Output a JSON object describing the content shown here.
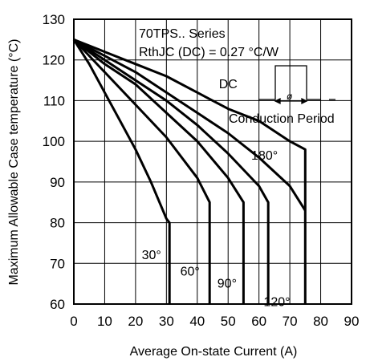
{
  "chart_data": {
    "type": "line",
    "title": "",
    "xlabel": "Average On-state Current (A)",
    "ylabel": "Maximum Allowable Case temperature (°C)",
    "xlim": [
      0,
      90
    ],
    "ylim": [
      60,
      130
    ],
    "xticks": [
      0,
      10,
      20,
      30,
      40,
      50,
      60,
      70,
      80,
      90
    ],
    "yticks": [
      60,
      70,
      80,
      90,
      100,
      110,
      120,
      130
    ],
    "grid": true,
    "annotations": {
      "series_line1": "70TPS.. Series",
      "series_line2": "RthJC (DC) = 0.27 °C/W",
      "conduction_label": "Conduction Period",
      "phi_symbol": "ø"
    },
    "series": [
      {
        "name": "30°",
        "label_at": [
          22,
          71
        ],
        "x": [
          0,
          5,
          10,
          15,
          20,
          25,
          30,
          31,
          31
        ],
        "y": [
          125,
          119,
          112,
          105,
          98,
          90,
          81,
          80,
          60
        ]
      },
      {
        "name": "60°",
        "label_at": [
          34.5,
          67
        ],
        "x": [
          0,
          10,
          20,
          30,
          40,
          44,
          44
        ],
        "y": [
          125,
          117,
          109,
          101,
          91,
          85,
          60
        ]
      },
      {
        "name": "90°",
        "label_at": [
          46.5,
          64
        ],
        "x": [
          0,
          10,
          20,
          30,
          40,
          50,
          55,
          55
        ],
        "y": [
          125,
          119,
          114,
          107,
          100,
          91,
          85,
          60
        ]
      },
      {
        "name": "120°",
        "label_at": [
          61.5,
          59.5
        ],
        "x": [
          0,
          10,
          20,
          30,
          40,
          50,
          60,
          63,
          63
        ],
        "y": [
          125,
          120,
          115,
          110,
          104,
          97,
          89,
          85,
          60
        ]
      },
      {
        "name": "180°",
        "label_at": [
          57.5,
          95.5
        ],
        "x": [
          0,
          10,
          20,
          30,
          40,
          50,
          60,
          70,
          75
        ],
        "y": [
          125,
          121,
          117,
          112,
          107,
          102,
          96,
          89,
          83
        ]
      },
      {
        "name": "DC",
        "label_at": [
          47,
          113
        ],
        "x": [
          0,
          10,
          20,
          30,
          40,
          50,
          60,
          70,
          75,
          75
        ],
        "y": [
          125,
          122,
          119,
          116,
          112,
          108,
          105,
          100,
          98,
          60
        ]
      }
    ]
  }
}
